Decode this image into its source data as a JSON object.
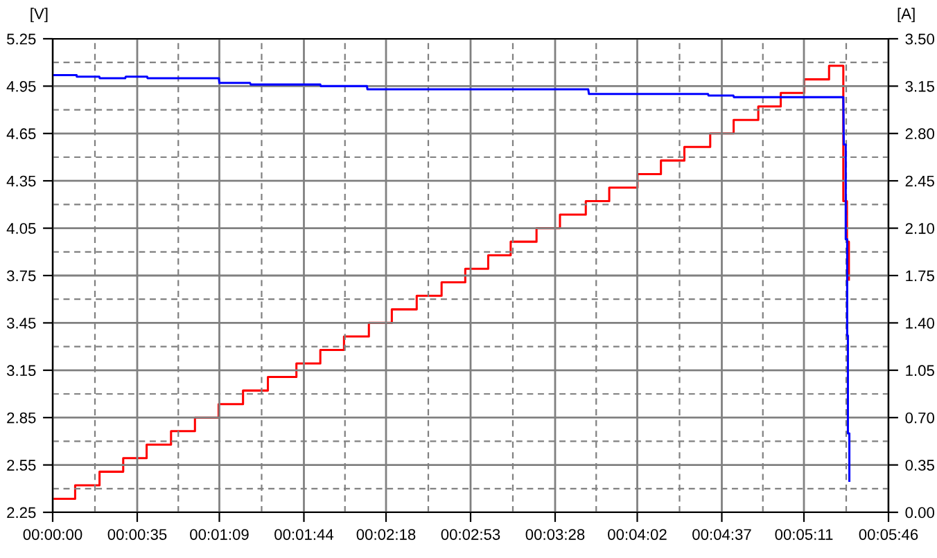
{
  "chart_data": {
    "type": "line",
    "ylabel": "[V]",
    "y2label": "[A]",
    "grid": true,
    "legend": false,
    "marker": "none",
    "line_style": "solid",
    "xlim": [
      0,
      346
    ],
    "xticks": [
      {
        "value": 0,
        "label": "00:00:00"
      },
      {
        "value": 35,
        "label": "00:00:35"
      },
      {
        "value": 69,
        "label": "00:01:09"
      },
      {
        "value": 104,
        "label": "00:01:44"
      },
      {
        "value": 138,
        "label": "00:02:18"
      },
      {
        "value": 173,
        "label": "00:02:53"
      },
      {
        "value": 208,
        "label": "00:03:28"
      },
      {
        "value": 242,
        "label": "00:04:02"
      },
      {
        "value": 277,
        "label": "00:04:37"
      },
      {
        "value": 311,
        "label": "00:05:11"
      },
      {
        "value": 346,
        "label": "00:05:46"
      }
    ],
    "ylim": [
      2.25,
      5.25
    ],
    "yticks": [
      2.25,
      2.55,
      2.85,
      3.15,
      3.45,
      3.75,
      4.05,
      4.35,
      4.65,
      4.95,
      5.25
    ],
    "y2lim": [
      0,
      3.5
    ],
    "y2ticks": [
      {
        "value": 0,
        "label": "0.00"
      },
      0.35,
      {
        "value": 0.7,
        "label": "0.70"
      },
      1.05,
      {
        "value": 1.4,
        "label": "1.40"
      },
      1.75,
      {
        "value": 2.1,
        "label": "2.10"
      },
      2.45,
      {
        "value": 2.8,
        "label": "2.80"
      },
      3.15,
      {
        "value": 3.5,
        "label": "3.50"
      }
    ],
    "series": [
      {
        "color": "#0000ff",
        "x": [
          0,
          9.9,
          10,
          19.3,
          19.5,
          30,
          30.3,
          39.1,
          39.3,
          68.8,
          69,
          81.7,
          82,
          110.8,
          111,
          130.1,
          130.3,
          221.7,
          222,
          271.3,
          271.5,
          281.8,
          282,
          327.3,
          327.5,
          328.3,
          328.3,
          328.9,
          328.9,
          329.2,
          329.2,
          329.8,
          329.8
        ],
        "values": [
          5.02,
          5.02,
          5.01,
          5.01,
          5.0,
          5.0,
          5.01,
          5.01,
          5.0,
          5.0,
          4.97,
          4.97,
          4.96,
          4.96,
          4.95,
          4.95,
          4.93,
          4.93,
          4.9,
          4.9,
          4.89,
          4.89,
          4.88,
          4.88,
          4.58,
          4.58,
          3.98,
          3.98,
          3.37,
          3.37,
          2.75,
          2.75,
          2.45
        ]
      },
      {
        "type": "step",
        "axis": "y2",
        "color": "#ff0000",
        "x": [
          0,
          9.3,
          19.4,
          29.2,
          38.9,
          49.0,
          58.9,
          68.7,
          78.8,
          89.1,
          100.9,
          110.8,
          120.6,
          130.9,
          140.4,
          150.7,
          161.0,
          170.8,
          180.3,
          189.6,
          200.3,
          210.0,
          220.7,
          230.4,
          242.1,
          251.8,
          261.5,
          272.2,
          281.9,
          292.1,
          301.4,
          311.1,
          321.4,
          327.3,
          328.8,
          329.6
        ],
        "values": [
          0.1,
          0.2,
          0.3,
          0.4,
          0.5,
          0.6,
          0.7,
          0.8,
          0.9,
          1.0,
          1.1,
          1.2,
          1.3,
          1.4,
          1.5,
          1.6,
          1.7,
          1.8,
          1.9,
          2.0,
          2.1,
          2.2,
          2.3,
          2.4,
          2.5,
          2.6,
          2.7,
          2.8,
          2.9,
          3.0,
          3.1,
          3.2,
          3.3,
          2.3,
          2.0,
          1.72
        ]
      }
    ]
  }
}
